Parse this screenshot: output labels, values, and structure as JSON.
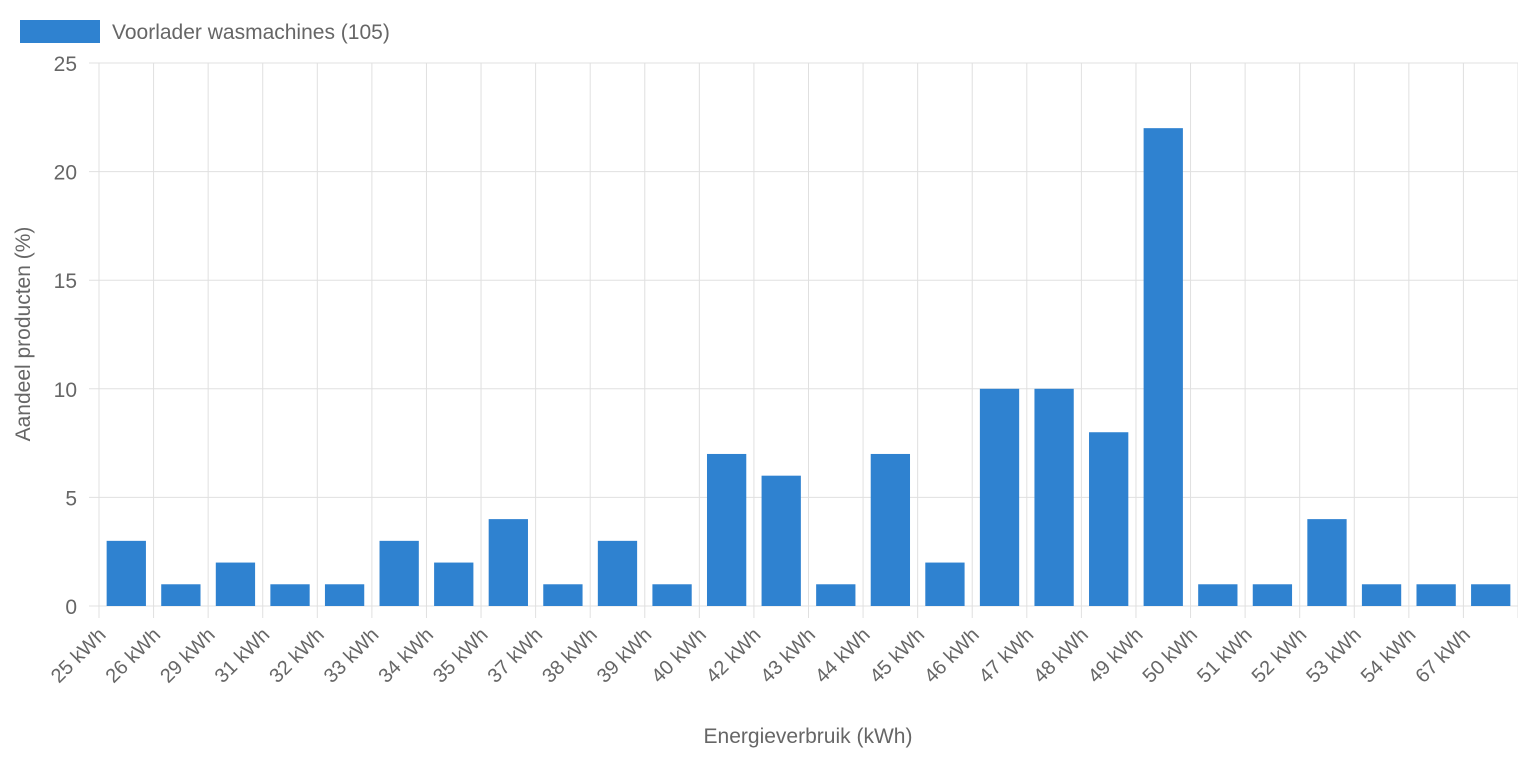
{
  "chart_data": {
    "type": "bar",
    "legend": {
      "label": "Voorlader wasmachines (105)",
      "color": "#2f82d0",
      "position": "top-left"
    },
    "xlabel": "Energieverbruik (kWh)",
    "ylabel": "Aandeel producten (%)",
    "ylim": [
      0,
      25
    ],
    "yticks": [
      0,
      5,
      10,
      15,
      20,
      25
    ],
    "grid": true,
    "categories": [
      "25 kWh",
      "26 kWh",
      "29 kWh",
      "31 kWh",
      "32 kWh",
      "33 kWh",
      "34 kWh",
      "35 kWh",
      "37 kWh",
      "38 kWh",
      "39 kWh",
      "40 kWh",
      "42 kWh",
      "43 kWh",
      "44 kWh",
      "45 kWh",
      "46 kWh",
      "47 kWh",
      "48 kWh",
      "49 kWh",
      "50 kWh",
      "51 kWh",
      "52 kWh",
      "53 kWh",
      "54 kWh",
      "67 kWh"
    ],
    "values": [
      3,
      1,
      2,
      1,
      1,
      3,
      2,
      4,
      1,
      3,
      1,
      7,
      6,
      1,
      7,
      2,
      10,
      10,
      8,
      22,
      1,
      1,
      4,
      1,
      1,
      1
    ],
    "bar_color": "#2f82d0",
    "grid_color": "#e0e0e0",
    "text_color": "#666666"
  }
}
